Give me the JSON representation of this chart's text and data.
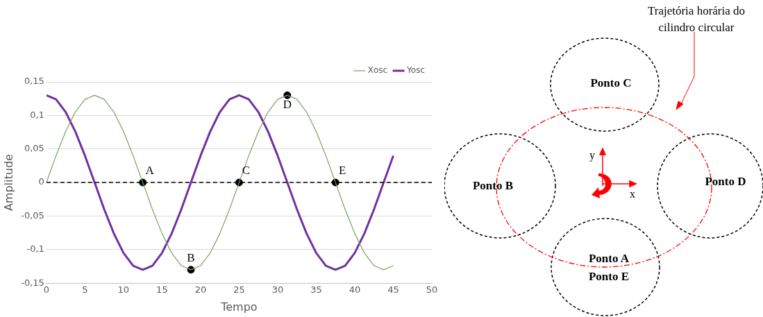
{
  "chart_data": [
    {
      "type": "line",
      "xlabel": "Tempo",
      "ylabel": "Amplitude",
      "xlim": [
        0,
        50
      ],
      "xticks": [
        0,
        5,
        10,
        15,
        20,
        25,
        30,
        35,
        40,
        45,
        50
      ],
      "ylim": [
        -0.15,
        0.15
      ],
      "yticks": [
        {
          "value": -0.15,
          "label": "-0,15"
        },
        {
          "value": -0.1,
          "label": "-0,1"
        },
        {
          "value": -0.05,
          "label": "-0,05"
        },
        {
          "value": 0,
          "label": "0"
        },
        {
          "value": 0.05,
          "label": "0,05"
        },
        {
          "value": 0.1,
          "label": "0,1"
        },
        {
          "value": 0.15,
          "label": "0,15"
        }
      ],
      "grid": "y",
      "legend": "top right",
      "marker": "none",
      "line_style": "solid",
      "x": [
        0,
        1.25,
        2.5,
        3.75,
        5,
        6.25,
        7.5,
        8.75,
        10,
        11.25,
        12.5,
        13.75,
        15,
        16.25,
        17.5,
        18.75,
        20,
        21.25,
        22.5,
        23.75,
        25,
        26.25,
        27.5,
        28.75,
        30,
        31.25,
        32.5,
        33.75,
        35,
        36.25,
        37.5,
        38.75,
        40,
        41.25,
        42.5,
        43.75,
        45
      ],
      "series": [
        {
          "name": "Xosc",
          "color": "#7aa35a",
          "values": [
            0,
            0.04,
            0.076,
            0.105,
            0.124,
            0.13,
            0.124,
            0.105,
            0.076,
            0.04,
            0,
            -0.04,
            -0.076,
            -0.105,
            -0.124,
            -0.13,
            -0.124,
            -0.105,
            -0.076,
            -0.04,
            0,
            0.04,
            0.076,
            0.105,
            0.124,
            0.13,
            0.124,
            0.105,
            0.076,
            0.04,
            0,
            -0.04,
            -0.076,
            -0.105,
            -0.124,
            -0.13,
            -0.124
          ]
        },
        {
          "name": "Yosc",
          "color": "#7030a0",
          "values": [
            0.13,
            0.124,
            0.105,
            0.076,
            0.04,
            0,
            -0.04,
            -0.076,
            -0.105,
            -0.124,
            -0.13,
            -0.124,
            -0.105,
            -0.076,
            -0.04,
            0,
            0.04,
            0.076,
            0.105,
            0.124,
            0.13,
            0.124,
            0.105,
            0.076,
            0.04,
            0,
            -0.04,
            -0.076,
            -0.105,
            -0.124,
            -0.13,
            -0.124,
            -0.105,
            -0.076,
            -0.04,
            0,
            0.04
          ]
        },
        {
          "type": "scatter",
          "color": "#000000",
          "marker": "circle",
          "x": [
            12.5,
            18.75,
            25,
            31.25,
            37.5
          ],
          "values": [
            0,
            -0.13,
            0,
            0.13,
            0
          ]
        }
      ],
      "ref_lines": [
        {
          "axis": "y",
          "value": 0,
          "color": "#000000",
          "line_style": "dashed"
        }
      ],
      "annotations": [
        {
          "text": "A",
          "x": 12.5,
          "y": 0
        },
        {
          "text": "B",
          "x": 18.75,
          "y": -0.13
        },
        {
          "text": "C",
          "x": 25,
          "y": 0
        },
        {
          "text": "D",
          "x": 31.25,
          "y": 0.13
        },
        {
          "text": "E",
          "x": 37.5,
          "y": 0
        }
      ]
    },
    {
      "type": "other",
      "annotations": [
        "Trajetória horária do cilindro circular",
        "Ponto C",
        "Ponto B",
        "Ponto D",
        "Ponto A",
        "Ponto E",
        "y",
        "x"
      ]
    }
  ]
}
